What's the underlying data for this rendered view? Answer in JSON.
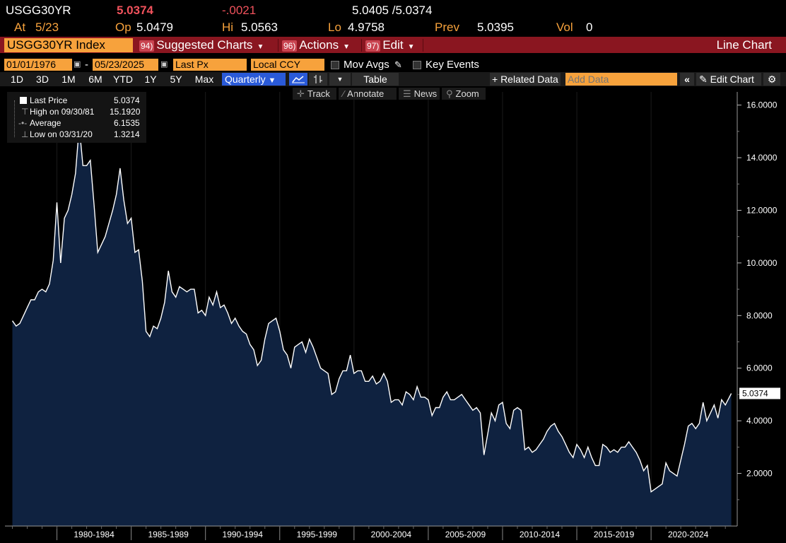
{
  "quote": {
    "ticker": "USGG30YR",
    "last": "5.0374",
    "change": "-.0021",
    "bid_ask": "5.0405 /5.0374",
    "at_label": "At",
    "at_value": "5/23",
    "op_label": "Op",
    "op_value": "5.0479",
    "hi_label": "Hi",
    "hi_value": "5.0563",
    "lo_label": "Lo",
    "lo_value": "4.9758",
    "prev_label": "Prev",
    "prev_value": "5.0395",
    "vol_label": "Vol",
    "vol_value": "0"
  },
  "command_bar": {
    "security": "USGG30YR Index",
    "suggested_num": "94)",
    "suggested_label": "Suggested Charts",
    "actions_num": "96)",
    "actions_label": "Actions",
    "edit_num": "97)",
    "edit_label": "Edit",
    "chart_type": "Line Chart"
  },
  "settings": {
    "start_date": "01/01/1976",
    "dash": "-",
    "end_date": "05/23/2025",
    "field": "Last Px",
    "currency": "Local CCY",
    "mov_avgs": "Mov Avgs",
    "key_events": "Key Events"
  },
  "timeframes": [
    "1D",
    "3D",
    "1M",
    "6M",
    "YTD",
    "1Y",
    "5Y",
    "Max"
  ],
  "periodicity": "Quarterly",
  "table_label": "Table",
  "related_data": "+ Related Data",
  "add_data_placeholder": "Add Data",
  "edit_chart": "Edit Chart",
  "tools": {
    "track": "Track",
    "annotate": "Annotate",
    "news": "News",
    "zoom": "Zoom"
  },
  "legend": {
    "last_price_label": "Last Price",
    "last_price_value": "5.0374",
    "high_label": "High on 09/30/81",
    "high_value": "15.1920",
    "average_label": "Average",
    "average_value": "6.1535",
    "low_label": "Low on 03/31/20",
    "low_value": "1.3214"
  },
  "colors": {
    "accent_orange": "#f7a23c",
    "command_red": "#8a1620",
    "area_fill": "#0f2240",
    "line": "#ffffff",
    "selected_blue": "#2a5ad8"
  },
  "chart_data": {
    "type": "area",
    "ylim": [
      0,
      16.5
    ],
    "yticks": [
      "16.0000",
      "14.0000",
      "12.0000",
      "10.0000",
      "8.0000",
      "6.0000",
      "4.0000",
      "2.0000"
    ],
    "ytick_values": [
      16,
      14,
      12,
      10,
      8,
      6,
      4,
      2
    ],
    "xticks": [
      "1980-1984",
      "1985-1989",
      "1990-1994",
      "1995-1999",
      "2000-2004",
      "2005-2009",
      "2010-2014",
      "2015-2019",
      "2020-2024"
    ],
    "xtick_start_years": [
      1980,
      1985,
      1990,
      1995,
      2000,
      2005,
      2010,
      2015,
      2020
    ],
    "last_value_label": "5.0374",
    "x": [
      1977.0,
      1977.25,
      1977.5,
      1977.75,
      1978.0,
      1978.25,
      1978.5,
      1978.75,
      1979.0,
      1979.25,
      1979.5,
      1979.75,
      1980.0,
      1980.25,
      1980.5,
      1980.75,
      1981.0,
      1981.25,
      1981.5,
      1981.75,
      1982.0,
      1982.25,
      1982.5,
      1982.75,
      1983.0,
      1983.25,
      1983.5,
      1983.75,
      1984.0,
      1984.25,
      1984.5,
      1984.75,
      1985.0,
      1985.25,
      1985.5,
      1985.75,
      1986.0,
      1986.25,
      1986.5,
      1986.75,
      1987.0,
      1987.25,
      1987.5,
      1987.75,
      1988.0,
      1988.25,
      1988.5,
      1988.75,
      1989.0,
      1989.25,
      1989.5,
      1989.75,
      1990.0,
      1990.25,
      1990.5,
      1990.75,
      1991.0,
      1991.25,
      1991.5,
      1991.75,
      1992.0,
      1992.25,
      1992.5,
      1992.75,
      1993.0,
      1993.25,
      1993.5,
      1993.75,
      1994.0,
      1994.25,
      1994.5,
      1994.75,
      1995.0,
      1995.25,
      1995.5,
      1995.75,
      1996.0,
      1996.25,
      1996.5,
      1996.75,
      1997.0,
      1997.25,
      1997.5,
      1997.75,
      1998.0,
      1998.25,
      1998.5,
      1998.75,
      1999.0,
      1999.25,
      1999.5,
      1999.75,
      2000.0,
      2000.25,
      2000.5,
      2000.75,
      2001.0,
      2001.25,
      2001.5,
      2001.75,
      2002.0,
      2002.25,
      2002.5,
      2002.75,
      2003.0,
      2003.25,
      2003.5,
      2003.75,
      2004.0,
      2004.25,
      2004.5,
      2004.75,
      2005.0,
      2005.25,
      2005.5,
      2005.75,
      2006.0,
      2006.25,
      2006.5,
      2006.75,
      2007.0,
      2007.25,
      2007.5,
      2007.75,
      2008.0,
      2008.25,
      2008.5,
      2008.75,
      2009.0,
      2009.25,
      2009.5,
      2009.75,
      2010.0,
      2010.25,
      2010.5,
      2010.75,
      2011.0,
      2011.25,
      2011.5,
      2011.75,
      2012.0,
      2012.25,
      2012.5,
      2012.75,
      2013.0,
      2013.25,
      2013.5,
      2013.75,
      2014.0,
      2014.25,
      2014.5,
      2014.75,
      2015.0,
      2015.25,
      2015.5,
      2015.75,
      2016.0,
      2016.25,
      2016.5,
      2016.75,
      2017.0,
      2017.25,
      2017.5,
      2017.75,
      2018.0,
      2018.25,
      2018.5,
      2018.75,
      2019.0,
      2019.25,
      2019.5,
      2019.75,
      2020.0,
      2020.25,
      2020.5,
      2020.75,
      2021.0,
      2021.25,
      2021.5,
      2021.75,
      2022.0,
      2022.25,
      2022.5,
      2022.75,
      2023.0,
      2023.25,
      2023.5,
      2023.75,
      2024.0,
      2024.25,
      2024.5,
      2024.75,
      2025.0,
      2025.4
    ],
    "values": [
      7.8,
      7.6,
      7.7,
      8.0,
      8.3,
      8.6,
      8.6,
      8.9,
      9.0,
      8.9,
      9.2,
      10.1,
      12.3,
      10.0,
      11.7,
      12.0,
      12.6,
      13.4,
      15.19,
      13.7,
      13.7,
      13.9,
      12.2,
      10.4,
      10.7,
      11.0,
      11.5,
      12.0,
      12.6,
      13.6,
      12.4,
      11.5,
      11.7,
      10.4,
      10.5,
      9.3,
      7.4,
      7.2,
      7.6,
      7.5,
      7.9,
      8.5,
      9.7,
      8.9,
      8.7,
      9.1,
      9.0,
      8.9,
      9.0,
      9.0,
      8.1,
      8.2,
      8.0,
      8.7,
      8.4,
      8.9,
      8.3,
      8.4,
      8.1,
      7.7,
      7.9,
      7.6,
      7.4,
      7.3,
      6.9,
      6.7,
      6.1,
      6.3,
      7.1,
      7.7,
      7.8,
      7.9,
      7.4,
      6.7,
      6.5,
      6.0,
      6.8,
      6.9,
      7.0,
      6.6,
      7.1,
      6.8,
      6.4,
      6.0,
      5.9,
      5.8,
      5.0,
      5.1,
      5.6,
      5.9,
      5.9,
      6.5,
      5.8,
      5.9,
      5.9,
      5.5,
      5.5,
      5.7,
      5.4,
      5.5,
      5.8,
      5.5,
      4.7,
      4.8,
      4.8,
      4.6,
      5.1,
      5.0,
      4.8,
      5.3,
      4.9,
      4.9,
      4.8,
      4.2,
      4.5,
      4.5,
      4.9,
      5.1,
      4.8,
      4.8,
      4.9,
      5.0,
      4.8,
      4.6,
      4.4,
      4.5,
      4.3,
      2.7,
      3.5,
      4.3,
      4.0,
      4.6,
      4.7,
      3.9,
      3.7,
      4.4,
      4.5,
      4.4,
      2.9,
      3.0,
      2.8,
      2.9,
      3.1,
      3.3,
      3.6,
      3.8,
      3.9,
      3.6,
      3.4,
      3.1,
      2.8,
      2.6,
      3.1,
      2.9,
      2.6,
      3.0,
      2.6,
      2.3,
      2.3,
      3.1,
      3.0,
      2.8,
      2.9,
      2.8,
      3.0,
      3.0,
      3.2,
      3.0,
      2.8,
      2.5,
      2.1,
      2.3,
      1.3,
      1.4,
      1.5,
      1.6,
      2.4,
      2.1,
      2.0,
      1.9,
      2.5,
      3.1,
      3.8,
      3.9,
      3.7,
      3.9,
      4.7,
      4.0,
      4.3,
      4.6,
      4.1,
      4.8,
      4.6,
      5.04
    ]
  }
}
